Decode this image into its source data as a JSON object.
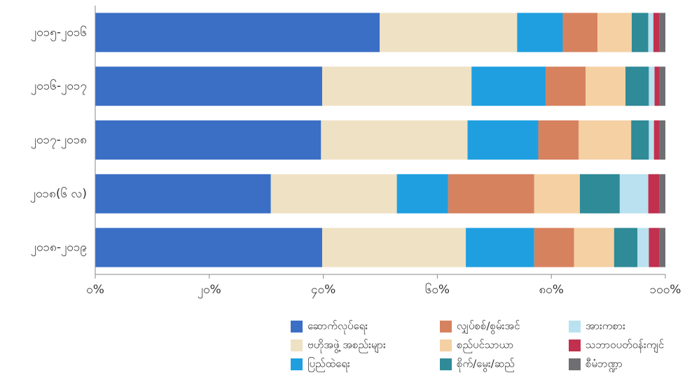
{
  "chart_data": {
    "type": "stacked_barh",
    "categories": [
      "၂၀၁၅-၂၀၁၆",
      "၂၀၁၆-၂၀၁၇",
      "၂၀၁၇-၂၀၁၈",
      "၂၀၁၈(၆ လ)",
      "၂၀၁၈-၂၀၁၉"
    ],
    "series": [
      {
        "name": "ဆောက်လုပ်ရေး",
        "color": "#3b6fc5",
        "values": [
          49.9,
          39.8,
          39.6,
          30.8,
          39.8
        ]
      },
      {
        "name": "ဗဟိုအဖွဲ့ အစည်းများ",
        "color": "#efe1c3",
        "values": [
          24.1,
          26.2,
          25.7,
          22.1,
          25.2
        ]
      },
      {
        "name": "ပြည်ထဲရေး",
        "color": "#1f9fe0",
        "values": [
          8.0,
          13.0,
          12.4,
          9.0,
          12.0
        ]
      },
      {
        "name": "လျှပ်စစ်/စွမ်းအင်",
        "color": "#d7825f",
        "values": [
          6.1,
          7.0,
          7.1,
          15.1,
          7.0
        ]
      },
      {
        "name": "စည်ပင်သာယာ",
        "color": "#f5d0a3",
        "values": [
          6.0,
          7.0,
          9.2,
          8.0,
          7.0
        ]
      },
      {
        "name": "စိုက်/မွေး/ဆည်",
        "color": "#2f8b97",
        "values": [
          2.9,
          4.1,
          3.1,
          7.0,
          4.1
        ]
      },
      {
        "name": "အားကစား",
        "color": "#b9e1ef",
        "values": [
          0.9,
          1.0,
          0.9,
          5.0,
          2.0
        ]
      },
      {
        "name": "သဘာဝပတ်ဝန်းကျင်",
        "color": "#c1304f",
        "values": [
          1.0,
          0.9,
          1.0,
          1.9,
          1.8
        ]
      },
      {
        "name": "စီမံဘဏ္ဍာ",
        "color": "#6f6f73",
        "values": [
          1.1,
          1.0,
          1.0,
          1.1,
          1.1
        ]
      }
    ],
    "xlim": [
      0,
      100
    ],
    "xticks": [
      {
        "value": 0,
        "label": "၀%"
      },
      {
        "value": 20,
        "label": "၂၀%"
      },
      {
        "value": 40,
        "label": "၄၀%"
      },
      {
        "value": 60,
        "label": "၆၀%"
      },
      {
        "value": 80,
        "label": "၈၀%"
      },
      {
        "value": 100,
        "label": "၁၀၀%"
      }
    ],
    "legend": "bottom-right"
  }
}
